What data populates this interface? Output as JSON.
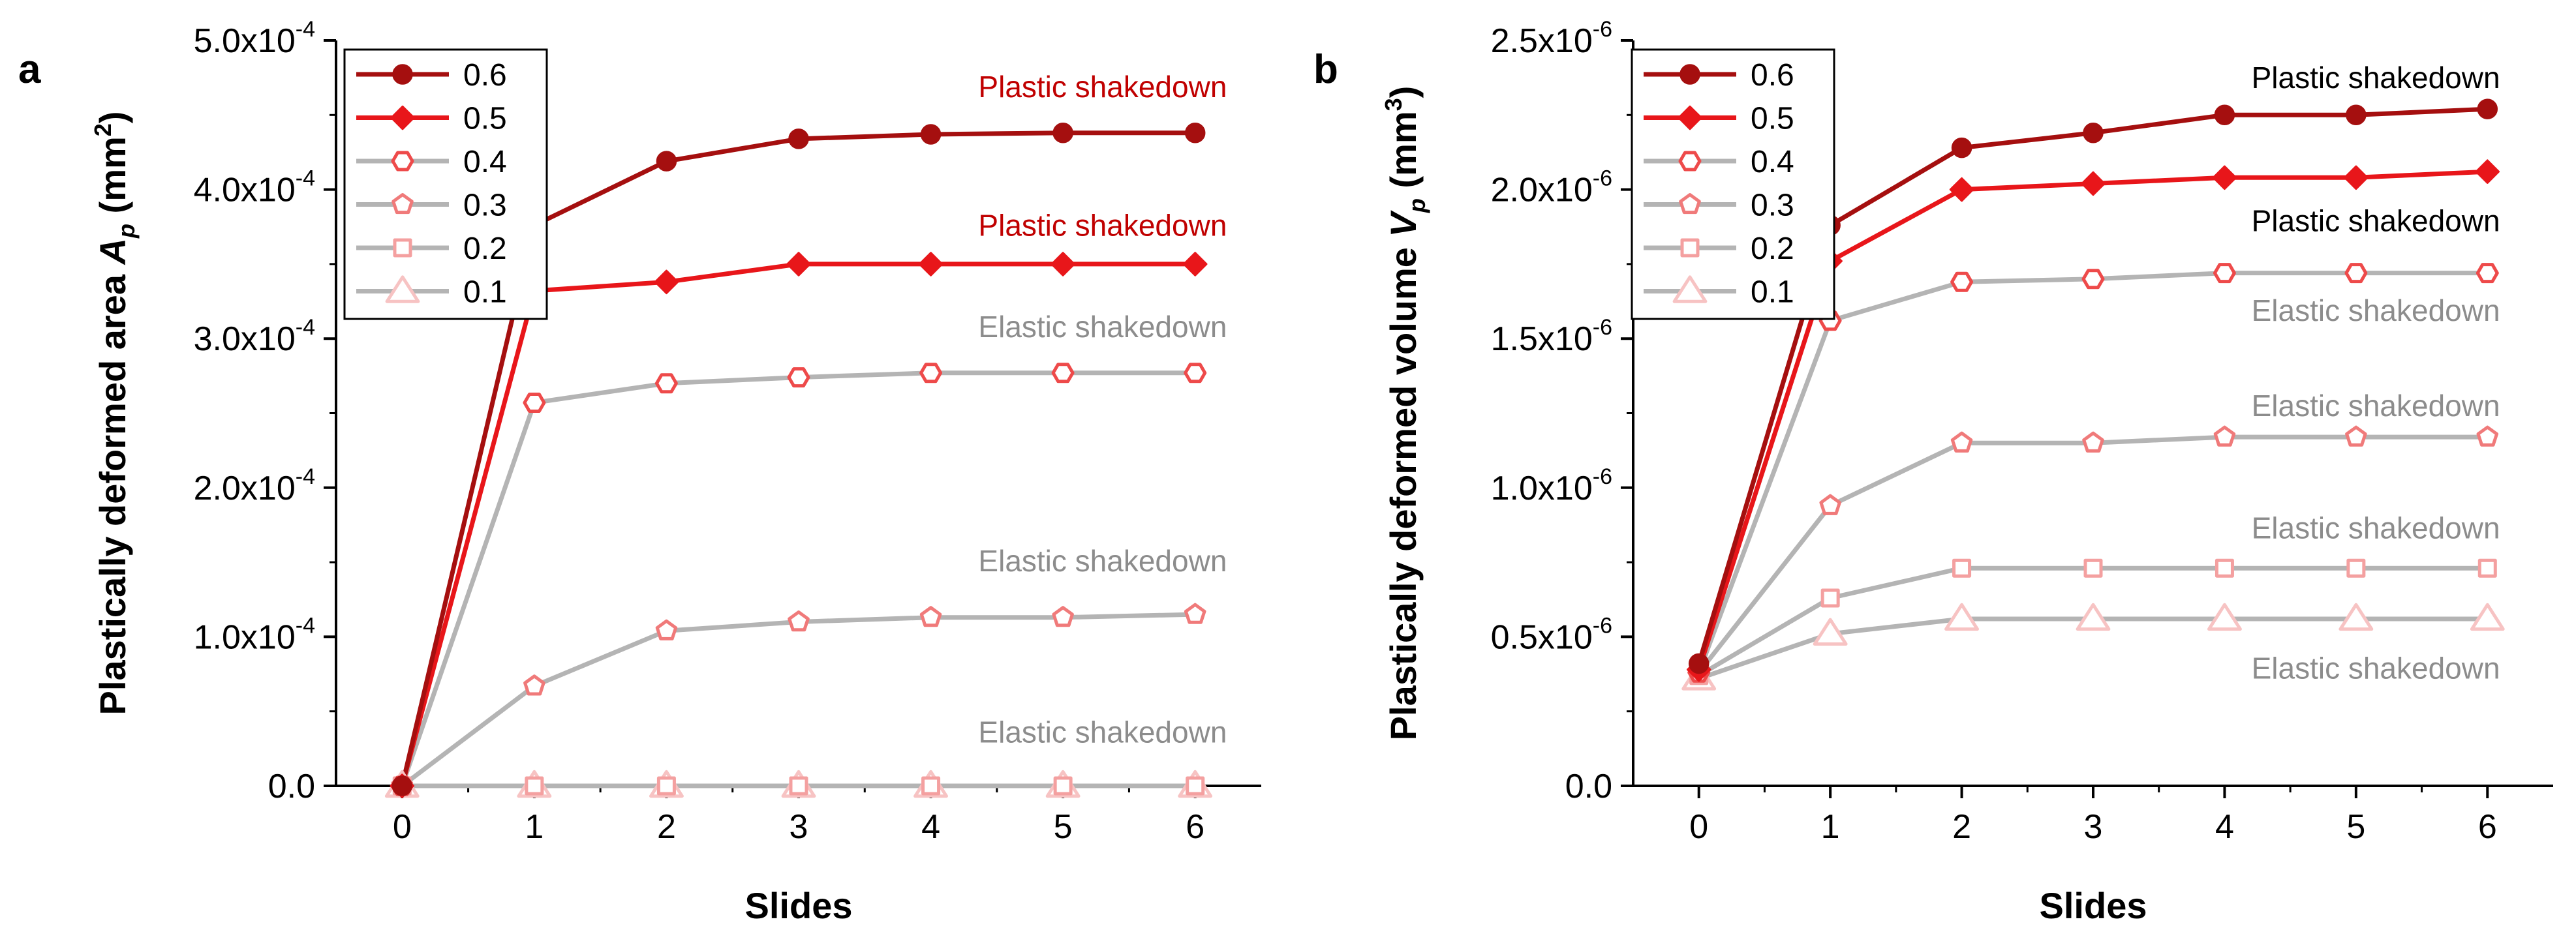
{
  "colors": {
    "c06": "#a50f0f",
    "c05": "#e8161a",
    "c04": "#ee4a4a",
    "c03": "#f07a7a",
    "c02": "#f4a0a0",
    "c01": "#f7c3c3",
    "gray_line": "#b4b4b4",
    "plastic_text": "#c00000",
    "elastic_text": "#8c8c8c",
    "black_text": "#000000"
  },
  "chart_data": [
    {
      "panel_label": "a",
      "type": "line",
      "title": "",
      "xlabel": "Slides",
      "ylabel_main": "Plastically deformed area ",
      "ylabel_sym": "A",
      "ylabel_sub": "p",
      "ylabel_unit_open": " (mm",
      "ylabel_unit_sup": "2",
      "ylabel_unit_close": ")",
      "xlim": [
        -0.5,
        6.5
      ],
      "ylim": [
        0,
        0.0005
      ],
      "x_ticks": [
        0,
        1,
        2,
        3,
        4,
        5,
        6
      ],
      "x_tick_labels": [
        "0",
        "1",
        "2",
        "3",
        "4",
        "5",
        "6"
      ],
      "y_ticks": [
        0,
        0.0001,
        0.0002,
        0.0003,
        0.0004,
        0.0005
      ],
      "y_tick_labels": [
        {
          "mant": "0.0",
          "exp": ""
        },
        {
          "mant": "1.0x10",
          "exp": "-4"
        },
        {
          "mant": "2.0x10",
          "exp": "-4"
        },
        {
          "mant": "3.0x10",
          "exp": "-4"
        },
        {
          "mant": "4.0x10",
          "exp": "-4"
        },
        {
          "mant": "5.0x10",
          "exp": "-4"
        }
      ],
      "x": [
        0,
        1,
        2,
        3,
        4,
        5,
        6
      ],
      "series": [
        {
          "name": "0.6",
          "values": [
            0,
            0.000376,
            0.000419,
            0.000434,
            0.000437,
            0.000438,
            0.000438
          ],
          "marker": "circle",
          "filled": true,
          "color": "c06",
          "line": "c06"
        },
        {
          "name": "0.5",
          "values": [
            0,
            0.000332,
            0.000338,
            0.00035,
            0.00035,
            0.00035,
            0.00035
          ],
          "marker": "diamond",
          "filled": true,
          "color": "c05",
          "line": "c05"
        },
        {
          "name": "0.4",
          "values": [
            0,
            0.000257,
            0.00027,
            0.000274,
            0.000277,
            0.000277,
            0.000277
          ],
          "marker": "hexagon",
          "filled": false,
          "color": "c04",
          "line": "gray_line"
        },
        {
          "name": "0.3",
          "values": [
            0,
            6.7e-05,
            0.000104,
            0.00011,
            0.000113,
            0.000113,
            0.000115
          ],
          "marker": "pentagon",
          "filled": false,
          "color": "c03",
          "line": "gray_line"
        },
        {
          "name": "0.2",
          "values": [
            0,
            0,
            0,
            0,
            0,
            0,
            0
          ],
          "marker": "square",
          "filled": false,
          "color": "c02",
          "line": "gray_line"
        },
        {
          "name": "0.1",
          "values": [
            0,
            0,
            0,
            0,
            0,
            0,
            0
          ],
          "marker": "triangle",
          "filled": false,
          "color": "c01",
          "line": "gray_line"
        }
      ],
      "legend_position": "top-left",
      "annotations": [
        {
          "text": "Plastic shakedown",
          "x": 5.3,
          "y": 0.000462,
          "color": "plastic_text"
        },
        {
          "text": "Plastic shakedown",
          "x": 5.3,
          "y": 0.000369,
          "color": "plastic_text"
        },
        {
          "text": "Elastic shakedown",
          "x": 5.3,
          "y": 0.000301,
          "color": "elastic_text"
        },
        {
          "text": "Elastic shakedown",
          "x": 5.3,
          "y": 0.000144,
          "color": "elastic_text"
        },
        {
          "text": "Elastic shakedown",
          "x": 5.3,
          "y": 2.9e-05,
          "color": "elastic_text"
        }
      ]
    },
    {
      "panel_label": "b",
      "type": "line",
      "title": "",
      "xlabel": "Slides",
      "ylabel_main": "Plastically deformed volume ",
      "ylabel_sym": "V",
      "ylabel_sub": "p",
      "ylabel_unit_open": " (mm",
      "ylabel_unit_sup": "3",
      "ylabel_unit_close": ")",
      "xlim": [
        -0.5,
        6.5
      ],
      "ylim": [
        0,
        2.5e-06
      ],
      "x_ticks": [
        0,
        1,
        2,
        3,
        4,
        5,
        6
      ],
      "x_tick_labels": [
        "0",
        "1",
        "2",
        "3",
        "4",
        "5",
        "6"
      ],
      "y_ticks": [
        0,
        5e-07,
        1e-06,
        1.5e-06,
        2e-06,
        2.5e-06
      ],
      "y_tick_labels": [
        {
          "mant": "0.0",
          "exp": ""
        },
        {
          "mant": "0.5x10",
          "exp": "-6"
        },
        {
          "mant": "1.0x10",
          "exp": "-6"
        },
        {
          "mant": "1.5x10",
          "exp": "-6"
        },
        {
          "mant": "2.0x10",
          "exp": "-6"
        },
        {
          "mant": "2.5x10",
          "exp": "-6"
        }
      ],
      "x": [
        0,
        1,
        2,
        3,
        4,
        5,
        6
      ],
      "series": [
        {
          "name": "0.6",
          "values": [
            4.1e-07,
            1.88e-06,
            2.14e-06,
            2.19e-06,
            2.25e-06,
            2.25e-06,
            2.27e-06
          ],
          "marker": "circle",
          "filled": true,
          "color": "c06",
          "line": "c06"
        },
        {
          "name": "0.5",
          "values": [
            3.9e-07,
            1.76e-06,
            2e-06,
            2.02e-06,
            2.04e-06,
            2.04e-06,
            2.06e-06
          ],
          "marker": "diamond",
          "filled": true,
          "color": "c05",
          "line": "c05"
        },
        {
          "name": "0.4",
          "values": [
            3.8e-07,
            1.56e-06,
            1.69e-06,
            1.7e-06,
            1.72e-06,
            1.72e-06,
            1.72e-06
          ],
          "marker": "hexagon",
          "filled": false,
          "color": "c04",
          "line": "gray_line"
        },
        {
          "name": "0.3",
          "values": [
            3.8e-07,
            9.4e-07,
            1.15e-06,
            1.15e-06,
            1.17e-06,
            1.17e-06,
            1.17e-06
          ],
          "marker": "pentagon",
          "filled": false,
          "color": "c03",
          "line": "gray_line"
        },
        {
          "name": "0.2",
          "values": [
            3.7e-07,
            6.3e-07,
            7.3e-07,
            7.3e-07,
            7.3e-07,
            7.3e-07,
            7.3e-07
          ],
          "marker": "square",
          "filled": false,
          "color": "c02",
          "line": "gray_line"
        },
        {
          "name": "0.1",
          "values": [
            3.6e-07,
            5.1e-07,
            5.6e-07,
            5.6e-07,
            5.6e-07,
            5.6e-07,
            5.6e-07
          ],
          "marker": "triangle",
          "filled": false,
          "color": "c01",
          "line": "gray_line"
        }
      ],
      "legend_position": "top-left",
      "annotations": [
        {
          "text": "Plastic shakedown",
          "x": 5.15,
          "y": 2.34e-06,
          "color": "black_text"
        },
        {
          "text": "Plastic shakedown",
          "x": 5.15,
          "y": 1.86e-06,
          "color": "black_text"
        },
        {
          "text": "Elastic shakedown",
          "x": 5.15,
          "y": 1.56e-06,
          "color": "elastic_text"
        },
        {
          "text": "Elastic shakedown",
          "x": 5.15,
          "y": 1.24e-06,
          "color": "elastic_text"
        },
        {
          "text": "Elastic shakedown",
          "x": 5.15,
          "y": 8.3e-07,
          "color": "elastic_text"
        },
        {
          "text": "Elastic shakedown",
          "x": 5.15,
          "y": 3.6e-07,
          "color": "elastic_text"
        }
      ]
    }
  ]
}
